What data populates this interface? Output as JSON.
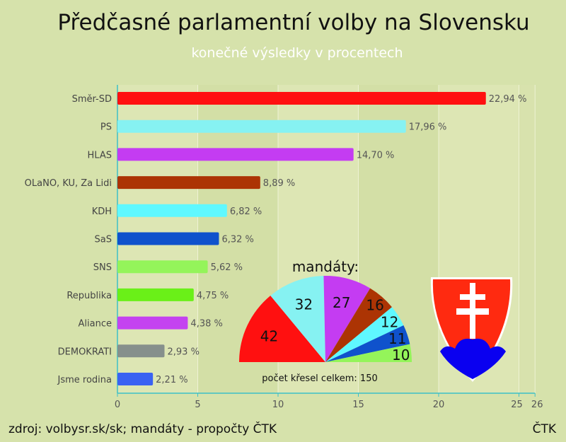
{
  "title": "Předčasné parlamentní volby na Slovensku",
  "subtitle": "konečné výsledky v procentech",
  "source": "zdroj: volbysr.sk/sk; mandáty - propočty ČTK",
  "credit": "ČTK",
  "chart_data": [
    {
      "type": "bar",
      "orientation": "horizontal",
      "categories": [
        "Směr-SD",
        "PS",
        "HLAS",
        "OLaNO, KU, Za Lidi",
        "KDH",
        "SaS",
        "SNS",
        "Republika",
        "Aliance",
        "DEMOKRATI",
        "Jsme rodina"
      ],
      "values": [
        22.94,
        17.96,
        14.7,
        8.89,
        6.82,
        6.32,
        5.62,
        4.75,
        4.38,
        2.93,
        2.21
      ],
      "value_labels": [
        "22,94 %",
        "17,96 %",
        "14,70 %",
        "8,89 %",
        "6,82 %",
        "6,32 %",
        "5,62 %",
        "4,75 %",
        "4,38 %",
        "2,93 %",
        "2,21 %"
      ],
      "colors": [
        "#ff1010",
        "#86f2f2",
        "#c43cf2",
        "#ac3404",
        "#5ff8ff",
        "#0f52cc",
        "#94f45a",
        "#6af018",
        "#c443f0",
        "#86908c",
        "#3a62f2"
      ],
      "xlim": [
        0,
        26
      ],
      "xticks": [
        "0",
        "5",
        "10",
        "15",
        "20",
        "25",
        "26"
      ],
      "xtick_values": [
        0,
        5,
        10,
        15,
        20,
        25,
        26
      ],
      "grid": true
    },
    {
      "type": "pie",
      "shape": "semicircle",
      "title": "mandáty:",
      "values": [
        42,
        32,
        27,
        16,
        12,
        11,
        10
      ],
      "labels": [
        "42",
        "32",
        "27",
        "16",
        "12",
        "11",
        "10"
      ],
      "colors": [
        "#ff1010",
        "#86f2f2",
        "#c43cf2",
        "#ac3404",
        "#5ff8ff",
        "#0f52cc",
        "#94f45a"
      ],
      "footer": "počet křesel celkem: 150"
    }
  ],
  "emblem": "slovak-coat-of-arms"
}
